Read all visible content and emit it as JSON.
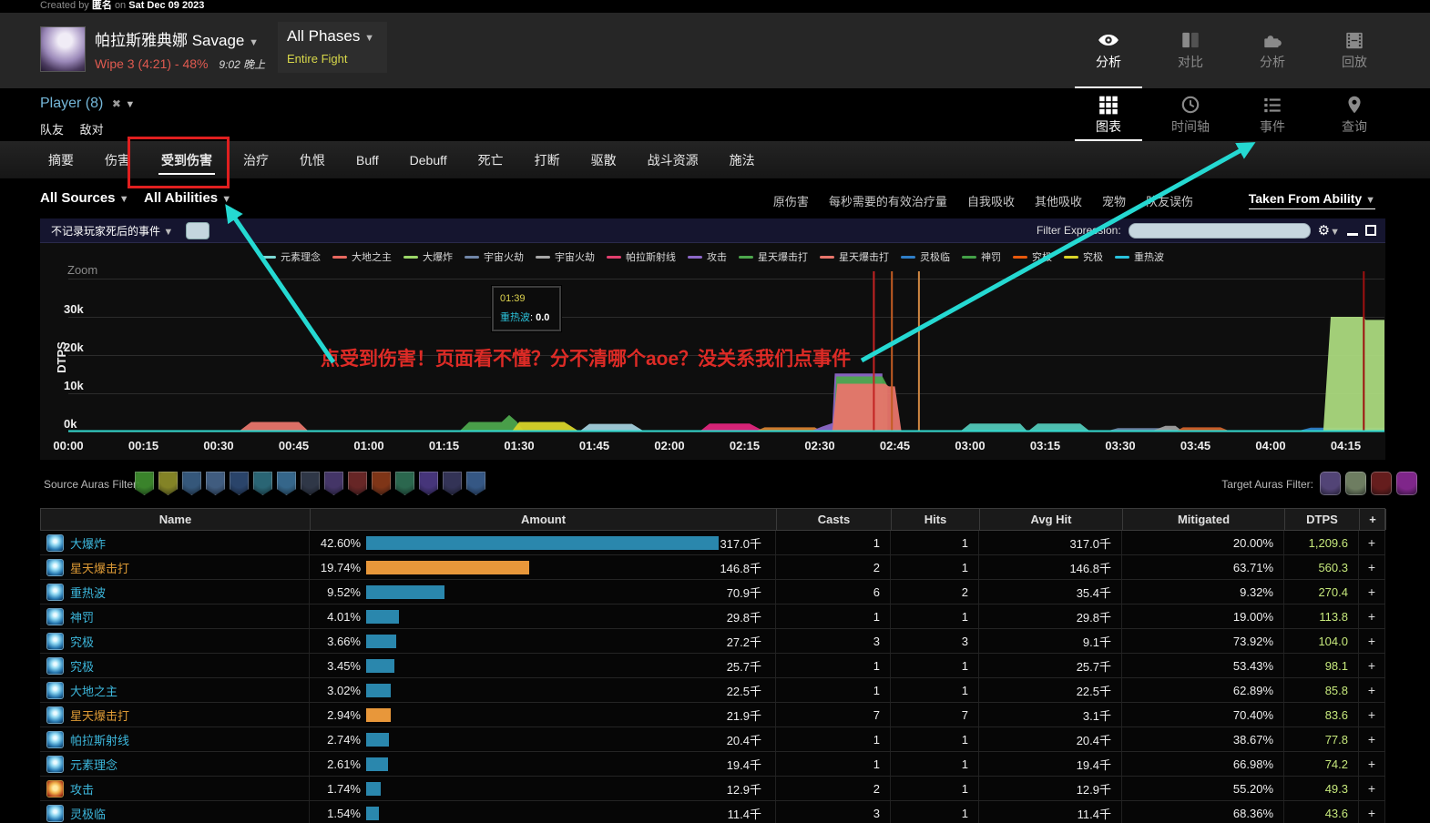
{
  "page": {
    "created_prefix": "Created by",
    "author": "匿名",
    "created_mid": "on",
    "created_date": "Sat Dec 09 2023"
  },
  "header": {
    "boss_title": "帕拉斯雅典娜 Savage",
    "wipe_info": "Wipe 3 (4:21) - 48%",
    "time": "9:02 晚上",
    "phase_label": "All Phases",
    "phase_sub": "Entire Fight",
    "views": [
      {
        "label": "分析",
        "icon": "eye-icon",
        "active": true
      },
      {
        "label": "对比",
        "icon": "compare-icon",
        "active": false
      },
      {
        "label": "分析",
        "icon": "puzzle-icon",
        "active": false
      },
      {
        "label": "回放",
        "icon": "film-icon",
        "active": false
      }
    ]
  },
  "subnav": {
    "player_label": "Player (8)",
    "links": [
      "队友",
      "敌对"
    ],
    "views": [
      {
        "label": "图表",
        "icon": "grid-icon",
        "active": true
      },
      {
        "label": "时间轴",
        "icon": "clock-icon",
        "active": false
      },
      {
        "label": "事件",
        "icon": "list-icon",
        "active": false
      },
      {
        "label": "查询",
        "icon": "pin-icon",
        "active": false
      }
    ]
  },
  "tabs": [
    {
      "label": "摘要"
    },
    {
      "label": "伤害"
    },
    {
      "label": "受到伤害",
      "active": true
    },
    {
      "label": "治疗"
    },
    {
      "label": "仇恨"
    },
    {
      "label": "Buff"
    },
    {
      "label": "Debuff"
    },
    {
      "label": "死亡"
    },
    {
      "label": "打断"
    },
    {
      "label": "驱散"
    },
    {
      "label": "战斗资源"
    },
    {
      "label": "施法"
    }
  ],
  "filters": {
    "left": [
      "All Sources",
      "All Abilities"
    ],
    "right": [
      "原伤害",
      "每秒需要的有效治疗量",
      "自我吸收",
      "其他吸收",
      "宠物",
      "队友误伤"
    ],
    "taken_from": "Taken From Ability"
  },
  "chart_toolbar": {
    "death_filter": "不记录玩家死后的事件",
    "filter_expression_label": "Filter Expression:"
  },
  "tooltip": {
    "time": "01:39",
    "ability": "重热波",
    "value": "0.0"
  },
  "annotation": {
    "text": "点受到伤害！页面看不懂？分不清哪个aoe？没关系我们点事件",
    "color": "#dd2b26"
  },
  "chart_data": {
    "type": "area",
    "title": "",
    "xlabel": "",
    "ylabel": "DTPS",
    "zoom_label": "Zoom",
    "ylim": [
      0,
      42000
    ],
    "grid_values": [
      40,
      30,
      20,
      10,
      0
    ],
    "yticks": [
      {
        "label": "30k",
        "k": 30
      },
      {
        "label": "20k",
        "k": 20
      },
      {
        "label": "10k",
        "k": 10
      },
      {
        "label": "0k",
        "k": 0
      }
    ],
    "xticks": [
      {
        "label": "00:00",
        "t": 0
      },
      {
        "label": "00:15",
        "t": 15
      },
      {
        "label": "00:30",
        "t": 30
      },
      {
        "label": "00:45",
        "t": 45
      },
      {
        "label": "01:00",
        "t": 60
      },
      {
        "label": "01:15",
        "t": 75
      },
      {
        "label": "01:30",
        "t": 90
      },
      {
        "label": "01:45",
        "t": 105
      },
      {
        "label": "02:00",
        "t": 120
      },
      {
        "label": "02:15",
        "t": 135
      },
      {
        "label": "02:30",
        "t": 150
      },
      {
        "label": "02:45",
        "t": 165
      },
      {
        "label": "03:00",
        "t": 180
      },
      {
        "label": "03:15",
        "t": 195
      },
      {
        "label": "03:30",
        "t": 210
      },
      {
        "label": "03:45",
        "t": 225
      },
      {
        "label": "04:00",
        "t": 240
      },
      {
        "label": "04:15",
        "t": 255
      }
    ],
    "legend": [
      {
        "name": "元素理念",
        "color": "#7cd9d4"
      },
      {
        "name": "大地之主",
        "color": "#e8685f"
      },
      {
        "name": "大爆炸",
        "color": "#9bd668"
      },
      {
        "name": "宇宙火劫",
        "color": "#7086a8"
      },
      {
        "name": "宇宙火劫",
        "color": "#a8a8a8"
      },
      {
        "name": "帕拉斯射线",
        "color": "#e23f6e"
      },
      {
        "name": "攻击",
        "color": "#8c68c8"
      },
      {
        "name": "星天爆击打",
        "color": "#4da74d"
      },
      {
        "name": "星天爆击打",
        "color": "#e8756b"
      },
      {
        "name": "灵极临",
        "color": "#2f7ec7"
      },
      {
        "name": "神罚",
        "color": "#43a047"
      },
      {
        "name": "究极",
        "color": "#e8590c"
      },
      {
        "name": "究极",
        "color": "#d9d42a"
      },
      {
        "name": "重热波",
        "color": "#29c2dc"
      }
    ],
    "series": [
      {
        "name": "星天爆击打",
        "color": "#e8756b",
        "points": [
          [
            34,
            0
          ],
          [
            36.5,
            2.5
          ],
          [
            46,
            2.5
          ],
          [
            48,
            0
          ]
        ]
      },
      {
        "name": "神罚",
        "color": "#4da74d",
        "points": [
          [
            78,
            0
          ],
          [
            80,
            2.5
          ],
          [
            86.5,
            2.5
          ],
          [
            88,
            4.3
          ],
          [
            89.5,
            2.6
          ],
          [
            91,
            0
          ]
        ]
      },
      {
        "name": "究极",
        "color": "#d9d42a",
        "points": [
          [
            88.5,
            0
          ],
          [
            90,
            2.5
          ],
          [
            99,
            2.5
          ],
          [
            102,
            0
          ]
        ]
      },
      {
        "name": "元素理念",
        "color": "#a3cfdc",
        "points": [
          [
            102,
            0
          ],
          [
            104,
            2
          ],
          [
            112.5,
            2
          ],
          [
            115,
            0
          ]
        ]
      },
      {
        "name": "帕拉斯射线",
        "color": "#e0257c",
        "points": [
          [
            126,
            0
          ],
          [
            128,
            2.1
          ],
          [
            136,
            2.1
          ],
          [
            139,
            0
          ]
        ]
      },
      {
        "name": "究极",
        "color": "#d8812f",
        "points": [
          [
            137,
            0
          ],
          [
            139,
            1.1
          ],
          [
            149,
            1.1
          ],
          [
            150.5,
            0
          ]
        ]
      },
      {
        "name": "攻击",
        "color": "#8c68c8",
        "points": [
          [
            148,
            0
          ],
          [
            150.5,
            1.3
          ],
          [
            152.5,
            2.2
          ],
          [
            153,
            15.2
          ],
          [
            162.5,
            15.2
          ],
          [
            162.5,
            0
          ]
        ]
      },
      {
        "name": "星天爆击打",
        "color": "#4da74d",
        "points": [
          [
            152.8,
            0
          ],
          [
            153.3,
            14.4
          ],
          [
            162.5,
            14.4
          ],
          [
            163.5,
            12
          ],
          [
            163.5,
            0
          ]
        ]
      },
      {
        "name": "重热波",
        "color": "#e8756b",
        "points": [
          [
            152.5,
            0
          ],
          [
            153.5,
            12.5
          ],
          [
            163,
            12.5
          ],
          [
            163.8,
            11.8
          ],
          [
            165,
            11.8
          ],
          [
            166.3,
            0
          ]
        ]
      },
      {
        "name": "元素理念",
        "color": "#52c8b8",
        "points": [
          [
            178,
            0
          ],
          [
            180,
            2.1
          ],
          [
            190,
            2.1
          ],
          [
            191.5,
            0
          ]
        ]
      },
      {
        "name": "元素理念",
        "color": "#52c8b8",
        "points": [
          [
            191.5,
            0
          ],
          [
            193.5,
            2.1
          ],
          [
            202,
            2.1
          ],
          [
            204,
            0
          ]
        ]
      },
      {
        "name": "宇宙火劫",
        "color": "#7086a8",
        "points": [
          [
            207,
            0
          ],
          [
            209.5,
            0.9
          ],
          [
            219.5,
            0.9
          ],
          [
            221,
            0
          ]
        ]
      },
      {
        "name": "宇宙火劫",
        "color": "#a0a0a0",
        "points": [
          [
            216,
            0
          ],
          [
            219,
            1.5
          ],
          [
            221,
            1.5
          ],
          [
            222.5,
            0
          ]
        ]
      },
      {
        "name": "究极",
        "color": "#d2622a",
        "points": [
          [
            221,
            0
          ],
          [
            222.5,
            1.1
          ],
          [
            230,
            1.1
          ],
          [
            232,
            0
          ]
        ]
      },
      {
        "name": "灵极临",
        "color": "#2f7ec7",
        "points": [
          [
            245,
            0
          ],
          [
            248,
            1
          ],
          [
            262.8,
            1
          ],
          [
            262.8,
            0
          ]
        ]
      },
      {
        "name": "大爆炸",
        "color": "#abd97e",
        "points": [
          [
            250.5,
            0
          ],
          [
            252,
            30
          ],
          [
            258.5,
            30
          ],
          [
            259,
            29.2
          ],
          [
            262.8,
            29.2
          ],
          [
            262.8,
            0
          ]
        ]
      }
    ],
    "vlines": [
      {
        "t": 160.8,
        "color": "#c32222"
      },
      {
        "t": 164.4,
        "color": "#c35c22"
      },
      {
        "t": 169.8,
        "color": "#cf8742"
      },
      {
        "t": 258.6,
        "color": "#9e1010"
      }
    ],
    "baseline_color": "#2fd8ce"
  },
  "auras": {
    "source_label": "Source Auras Filter:",
    "target_label": "Target Auras Filter:",
    "source_icons": [
      "#3f8f2f",
      "#8f8f2a",
      "#3a5f85",
      "#46648a",
      "#2e4a74",
      "#2e6e7e",
      "#3a6f96",
      "#343c4e",
      "#4a3a70",
      "#702a2a",
      "#8a3a1a",
      "#2f7055",
      "#4c3a85",
      "#38385e",
      "#3a5f90"
    ],
    "target_icons": [
      "#5a4a80",
      "#78886a",
      "#6e2020",
      "#8a2a96"
    ]
  },
  "table": {
    "columns": [
      "Name",
      "Amount",
      "Casts",
      "Hits",
      "Avg Hit",
      "Mitigated",
      "DTPS",
      "+"
    ],
    "rows": [
      {
        "name": "大爆炸",
        "name_color": "cyan",
        "icon": "person",
        "pct": "42.60%",
        "pct_num": 42.6,
        "bar_color": "#2a87ad",
        "amount": "317.0千",
        "casts": "1",
        "hits": "1",
        "avg_hit": "317.0千",
        "mitigated": "20.00%",
        "dtps": "1,209.6"
      },
      {
        "name": "星天爆击打",
        "name_color": "orange",
        "icon": "person",
        "pct": "19.74%",
        "pct_num": 19.74,
        "bar_color": "#e8973a",
        "amount": "146.8千",
        "casts": "2",
        "hits": "1",
        "avg_hit": "146.8千",
        "mitigated": "63.71%",
        "dtps": "560.3"
      },
      {
        "name": "重热波",
        "name_color": "cyan",
        "icon": "person",
        "pct": "9.52%",
        "pct_num": 9.52,
        "bar_color": "#2a87ad",
        "amount": "70.9千",
        "casts": "6",
        "hits": "2",
        "avg_hit": "35.4千",
        "mitigated": "9.32%",
        "dtps": "270.4"
      },
      {
        "name": "神罚",
        "name_color": "cyan",
        "icon": "person",
        "pct": "4.01%",
        "pct_num": 4.01,
        "bar_color": "#2a87ad",
        "amount": "29.8千",
        "casts": "1",
        "hits": "1",
        "avg_hit": "29.8千",
        "mitigated": "19.00%",
        "dtps": "113.8"
      },
      {
        "name": "究极",
        "name_color": "cyan",
        "icon": "person",
        "pct": "3.66%",
        "pct_num": 3.66,
        "bar_color": "#2a87ad",
        "amount": "27.2千",
        "casts": "3",
        "hits": "3",
        "avg_hit": "9.1千",
        "mitigated": "73.92%",
        "dtps": "104.0"
      },
      {
        "name": "究极",
        "name_color": "cyan",
        "icon": "person",
        "pct": "3.45%",
        "pct_num": 3.45,
        "bar_color": "#2a87ad",
        "amount": "25.7千",
        "casts": "1",
        "hits": "1",
        "avg_hit": "25.7千",
        "mitigated": "53.43%",
        "dtps": "98.1"
      },
      {
        "name": "大地之主",
        "name_color": "cyan",
        "icon": "person",
        "pct": "3.02%",
        "pct_num": 3.02,
        "bar_color": "#2a87ad",
        "amount": "22.5千",
        "casts": "1",
        "hits": "1",
        "avg_hit": "22.5千",
        "mitigated": "62.89%",
        "dtps": "85.8"
      },
      {
        "name": "星天爆击打",
        "name_color": "orange",
        "icon": "person",
        "pct": "2.94%",
        "pct_num": 2.94,
        "bar_color": "#e8973a",
        "amount": "21.9千",
        "casts": "7",
        "hits": "7",
        "avg_hit": "3.1千",
        "mitigated": "70.40%",
        "dtps": "83.6"
      },
      {
        "name": "帕拉斯射线",
        "name_color": "cyan",
        "icon": "person",
        "pct": "2.74%",
        "pct_num": 2.74,
        "bar_color": "#2a87ad",
        "amount": "20.4千",
        "casts": "1",
        "hits": "1",
        "avg_hit": "20.4千",
        "mitigated": "38.67%",
        "dtps": "77.8"
      },
      {
        "name": "元素理念",
        "name_color": "cyan",
        "icon": "person",
        "pct": "2.61%",
        "pct_num": 2.61,
        "bar_color": "#2a87ad",
        "amount": "19.4千",
        "casts": "1",
        "hits": "1",
        "avg_hit": "19.4千",
        "mitigated": "66.98%",
        "dtps": "74.2"
      },
      {
        "name": "攻击",
        "name_color": "cyan",
        "icon": "attack",
        "pct": "1.74%",
        "pct_num": 1.74,
        "bar_color": "#2a87ad",
        "amount": "12.9千",
        "casts": "2",
        "hits": "1",
        "avg_hit": "12.9千",
        "mitigated": "55.20%",
        "dtps": "49.3"
      },
      {
        "name": "灵极临",
        "name_color": "cyan",
        "icon": "person",
        "pct": "1.54%",
        "pct_num": 1.54,
        "bar_color": "#2a87ad",
        "amount": "11.4千",
        "casts": "3",
        "hits": "1",
        "avg_hit": "11.4千",
        "mitigated": "68.36%",
        "dtps": "43.6"
      }
    ]
  }
}
